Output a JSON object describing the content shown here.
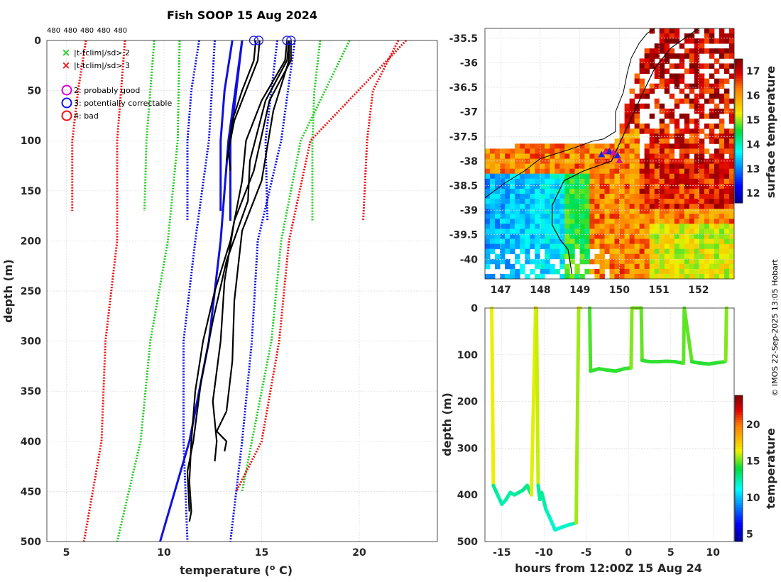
{
  "title": "Fish SOOP 15 Aug 2024",
  "top_counts": [
    "480",
    "480",
    "480",
    "480",
    "480"
  ],
  "credit": "© IMOS 22-Sep-2025 13:05 Hobart",
  "chart_data": [
    {
      "type": "line",
      "name": "temperature-depth profiles",
      "xlabel": "temperature (",
      "xlabel_sup": "o",
      "xlabel_end": " C)",
      "ylabel": "depth (m)",
      "xlim": [
        4,
        24
      ],
      "ylim": [
        0,
        500
      ],
      "xticks": [
        "5",
        "10",
        "15",
        "20"
      ],
      "xtick_values": [
        5,
        10,
        15,
        20
      ],
      "yticks": [
        "0",
        "50",
        "100",
        "150",
        "200",
        "250",
        "300",
        "350",
        "400",
        "450",
        "500"
      ],
      "ytick_values": [
        0,
        50,
        100,
        150,
        200,
        250,
        300,
        350,
        400,
        450,
        500
      ],
      "legend": [
        {
          "marker": "x",
          "color": "#22cc22",
          "label": "|t-tclim|/sd> 2"
        },
        {
          "marker": "x",
          "color": "#ee1111",
          "label": "|t-tclim|/sd> 3"
        },
        {
          "marker": "o",
          "color": "#dd00dd",
          "label": "2: probably good"
        },
        {
          "marker": "o",
          "color": "#1111ee",
          "label": "3: potentially correctable"
        },
        {
          "marker": "o",
          "color": "#ee1111",
          "label": "4: bad"
        }
      ],
      "climatology": [
        {
          "name": "clim-mean",
          "color": "#1010e0",
          "dashed": false,
          "depth": [
            0,
            50,
            100,
            170
          ],
          "temp": [
            13.5,
            13.1,
            12.9,
            12.9
          ]
        },
        {
          "name": "clim-mean-2",
          "color": "#1010e0",
          "dashed": false,
          "depth": [
            0,
            50,
            100,
            180
          ],
          "temp": [
            14.0,
            13.7,
            13.4,
            13.4
          ]
        },
        {
          "name": "clim-mean-deep",
          "color": "#1010e0",
          "dashed": false,
          "depth": [
            0,
            100,
            200,
            300,
            400,
            500
          ],
          "temp": [
            14.0,
            13.3,
            12.9,
            12.3,
            11.3,
            9.8
          ]
        },
        {
          "name": "clim-minus1sd",
          "color": "#1010e0",
          "dashed": true,
          "depth": [
            0,
            50,
            100,
            180
          ],
          "temp": [
            11.8,
            11.4,
            11.2,
            11.2
          ]
        },
        {
          "name": "clim-plus1sd",
          "color": "#1010e0",
          "dashed": true,
          "depth": [
            0,
            50,
            100,
            180
          ],
          "temp": [
            15.8,
            15.5,
            15.2,
            15.3
          ]
        },
        {
          "name": "clim-minus1sd-deep",
          "color": "#1010e0",
          "dashed": true,
          "depth": [
            0,
            100,
            200,
            300,
            400,
            500
          ],
          "temp": [
            12.6,
            12.3,
            11.6,
            11.0,
            11.0,
            11.2
          ]
        },
        {
          "name": "clim-plus1sd-deep",
          "color": "#1010e0",
          "dashed": true,
          "depth": [
            0,
            100,
            200,
            300,
            400,
            500
          ],
          "temp": [
            16.7,
            16.0,
            14.8,
            14.5,
            14.0,
            13.4
          ]
        },
        {
          "name": "clim-minus2sd",
          "color": "#22cc22",
          "dashed": true,
          "depth": [
            0,
            50,
            100,
            170
          ],
          "temp": [
            9.5,
            9.3,
            9.1,
            9.0
          ]
        },
        {
          "name": "clim-plus2sd",
          "color": "#22cc22",
          "dashed": true,
          "depth": [
            0,
            50,
            100,
            180
          ],
          "temp": [
            18.0,
            17.7,
            17.6,
            17.6
          ]
        },
        {
          "name": "clim-minus2sd-deep",
          "color": "#22cc22",
          "dashed": true,
          "depth": [
            0,
            100,
            200,
            300,
            400,
            500
          ],
          "temp": [
            10.8,
            10.7,
            10.2,
            9.3,
            8.8,
            7.6
          ]
        },
        {
          "name": "clim-plus2sd-deep",
          "color": "#22cc22",
          "dashed": true,
          "depth": [
            0,
            100,
            200,
            300,
            400,
            450
          ],
          "temp": [
            19.5,
            17.0,
            16.0,
            15.5,
            14.5,
            14.0
          ]
        },
        {
          "name": "clim-minus3sd",
          "color": "#ee1111",
          "dashed": true,
          "depth": [
            0,
            50,
            100,
            170
          ],
          "temp": [
            6.0,
            5.6,
            5.3,
            5.3
          ]
        },
        {
          "name": "clim-plus3sd",
          "color": "#ee1111",
          "dashed": true,
          "depth": [
            0,
            50,
            100,
            180
          ],
          "temp": [
            22.0,
            20.7,
            20.4,
            20.2
          ]
        },
        {
          "name": "clim-minus3sd-deep",
          "color": "#ee1111",
          "dashed": true,
          "depth": [
            0,
            100,
            200,
            300,
            400,
            500
          ],
          "temp": [
            8.0,
            7.6,
            7.6,
            7.0,
            6.8,
            5.9
          ]
        },
        {
          "name": "clim-plus3sd-deep",
          "color": "#ee1111",
          "dashed": true,
          "depth": [
            0,
            100,
            200,
            300,
            400,
            450
          ],
          "temp": [
            22.4,
            17.5,
            16.4,
            15.9,
            15.0,
            13.7
          ]
        }
      ],
      "profiles": [
        {
          "name": "profile-1",
          "depth": [
            0,
            20,
            50,
            80,
            110,
            130
          ],
          "temp": [
            14.7,
            14.6,
            14.0,
            13.5,
            13.3,
            13.4
          ]
        },
        {
          "name": "profile-2",
          "depth": [
            0,
            20,
            50,
            80,
            120
          ],
          "temp": [
            14.9,
            14.8,
            14.2,
            13.6,
            13.2
          ]
        },
        {
          "name": "profile-3",
          "depth": [
            0,
            20,
            60,
            100,
            140,
            200,
            250,
            300,
            350,
            400,
            440,
            470,
            480
          ],
          "temp": [
            16.3,
            16.2,
            15.0,
            14.2,
            14.0,
            13.4,
            12.6,
            12.0,
            11.6,
            11.4,
            11.3,
            11.4,
            11.3
          ]
        },
        {
          "name": "profile-4",
          "depth": [
            0,
            20,
            60,
            120,
            160,
            220,
            280,
            340,
            400,
            430,
            470
          ],
          "temp": [
            16.4,
            16.3,
            15.2,
            14.4,
            14.3,
            13.2,
            12.5,
            11.9,
            11.5,
            11.2,
            11.3
          ]
        },
        {
          "name": "profile-5",
          "depth": [
            0,
            20,
            60,
            130,
            180,
            240,
            300,
            360,
            400,
            420
          ],
          "temp": [
            16.5,
            16.5,
            15.4,
            14.6,
            13.6,
            13.1,
            12.9,
            12.5,
            12.7,
            12.6
          ]
        },
        {
          "name": "profile-6",
          "depth": [
            0,
            20,
            70,
            140,
            190,
            260,
            320,
            370,
            390,
            400,
            410
          ],
          "temp": [
            16.4,
            16.4,
            15.6,
            15.0,
            14.0,
            13.6,
            13.5,
            13.2,
            12.7,
            13.2,
            13.1
          ]
        }
      ],
      "flag_markers": [
        {
          "depth": 0,
          "temp": 14.6
        },
        {
          "depth": 0,
          "temp": 14.85
        },
        {
          "depth": 0,
          "temp": 16.3
        },
        {
          "depth": 0,
          "temp": 16.5
        }
      ]
    },
    {
      "type": "heatmap",
      "name": "surface temperature map",
      "colorbar_label": "surface temperature",
      "colorbar_ticks": [
        "12",
        "13",
        "14",
        "15",
        "16",
        "17"
      ],
      "colorbar_tick_values": [
        12,
        13,
        14,
        15,
        16,
        17
      ],
      "clim": [
        11.6,
        17.5
      ],
      "xlim": [
        146.6,
        152.9
      ],
      "ylim": [
        -40.4,
        -35.3
      ],
      "xticks": [
        "147",
        "148",
        "149",
        "150",
        "151",
        "152"
      ],
      "xtick_values": [
        147,
        148,
        149,
        150,
        151,
        152
      ],
      "yticks": [
        "-35.5",
        "-36",
        "-36.5",
        "-37",
        "-37.5",
        "-38",
        "-38.5",
        "-39",
        "-39.5",
        "-40"
      ],
      "ytick_values": [
        -35.5,
        -36,
        -36.5,
        -37,
        -37.5,
        -38,
        -38.5,
        -39,
        -39.5,
        -40
      ],
      "coastline_lon": [
        146.6,
        147.1,
        147.6,
        148.0,
        148.4,
        148.9,
        149.3,
        149.6,
        149.9,
        149.9,
        150.1,
        150.2,
        150.3,
        150.5,
        150.7,
        150.9
      ],
      "coastline_lat": [
        -38.75,
        -38.45,
        -38.2,
        -37.95,
        -37.85,
        -37.72,
        -37.6,
        -37.55,
        -37.4,
        -37.0,
        -36.6,
        -36.2,
        -35.9,
        -35.6,
        -35.4,
        -35.3
      ],
      "isobath_lon": [
        152.0,
        151.3,
        150.9,
        150.6,
        150.2,
        149.8,
        149.1,
        148.6,
        148.3,
        148.3,
        148.5,
        148.7,
        148.8
      ],
      "isobath_lat": [
        -35.3,
        -35.7,
        -36.1,
        -36.6,
        -37.3,
        -38.0,
        -38.2,
        -38.4,
        -38.9,
        -39.3,
        -39.6,
        -39.8,
        -40.3
      ],
      "track_lon": [
        149.55,
        149.65,
        149.75,
        149.85,
        149.95,
        150.0
      ],
      "track_lat": [
        -37.88,
        -37.82,
        -37.82,
        -37.84,
        -37.9,
        -38.0
      ]
    },
    {
      "type": "scatter",
      "name": "depth vs time",
      "xlabel": "hours from 12:00Z 15 Aug 24",
      "ylabel": "depth (m)",
      "colorbar_label": "temperature",
      "colorbar_ticks": [
        "5",
        "10",
        "15",
        "20"
      ],
      "colorbar_tick_values": [
        5,
        10,
        15,
        20
      ],
      "clim": [
        4,
        24
      ],
      "xlim": [
        -17,
        12.5
      ],
      "ylim": [
        0,
        500
      ],
      "xticks": [
        "-15",
        "-10",
        "-5",
        "0",
        "5",
        "10"
      ],
      "xtick_values": [
        -15,
        -10,
        -5,
        0,
        5,
        10
      ],
      "yticks": [
        "0",
        "100",
        "200",
        "300",
        "400",
        "500"
      ],
      "ytick_values": [
        0,
        100,
        200,
        300,
        400,
        500
      ],
      "track_hours": [
        -16.2,
        -16.0,
        -15.5,
        -15.0,
        -14.5,
        -14.0,
        -13.5,
        -13.0,
        -12.5,
        -12.0,
        -11.5,
        -11.0,
        -10.9,
        -10.7,
        -10.5,
        -10.3,
        -10.2,
        -9.8,
        -9.3,
        -8.7,
        -8.0,
        -7.2,
        -6.2,
        -5.9,
        -5.8,
        -5.7,
        -4.6,
        -4.5,
        -3.5,
        -2.5,
        -1.5,
        -0.5,
        0.3,
        0.4,
        0.5,
        1.5,
        1.6,
        2.5,
        3.5,
        4.5,
        5.5,
        6.5,
        6.6,
        7.5,
        8.5,
        9.5,
        10.5,
        11.4,
        11.5,
        11.6
      ],
      "track_depth": [
        0,
        380,
        400,
        420,
        410,
        395,
        400,
        395,
        390,
        380,
        400,
        0,
        0,
        380,
        410,
        395,
        400,
        430,
        450,
        475,
        470,
        465,
        460,
        0,
        0,
        0,
        0,
        135,
        130,
        133,
        135,
        130,
        128,
        0,
        0,
        0,
        112,
        115,
        115,
        114,
        115,
        118,
        0,
        115,
        118,
        120,
        117,
        115,
        112,
        0
      ],
      "track_temp": [
        20,
        13,
        12.5,
        12.3,
        12.4,
        12.6,
        12.5,
        12.7,
        12.8,
        13,
        12.5,
        20,
        19,
        13,
        12.5,
        12.8,
        12.7,
        12.3,
        12.1,
        11.8,
        11.9,
        12,
        12.2,
        19,
        17,
        15,
        15,
        14.5,
        14.5,
        14.5,
        14.4,
        14.5,
        14.6,
        16,
        15,
        15.5,
        14.5,
        14.5,
        14.5,
        14.5,
        14.5,
        14.4,
        15.5,
        14.4,
        14.4,
        14.4,
        14.5,
        14.5,
        14.6,
        16
      ]
    }
  ]
}
